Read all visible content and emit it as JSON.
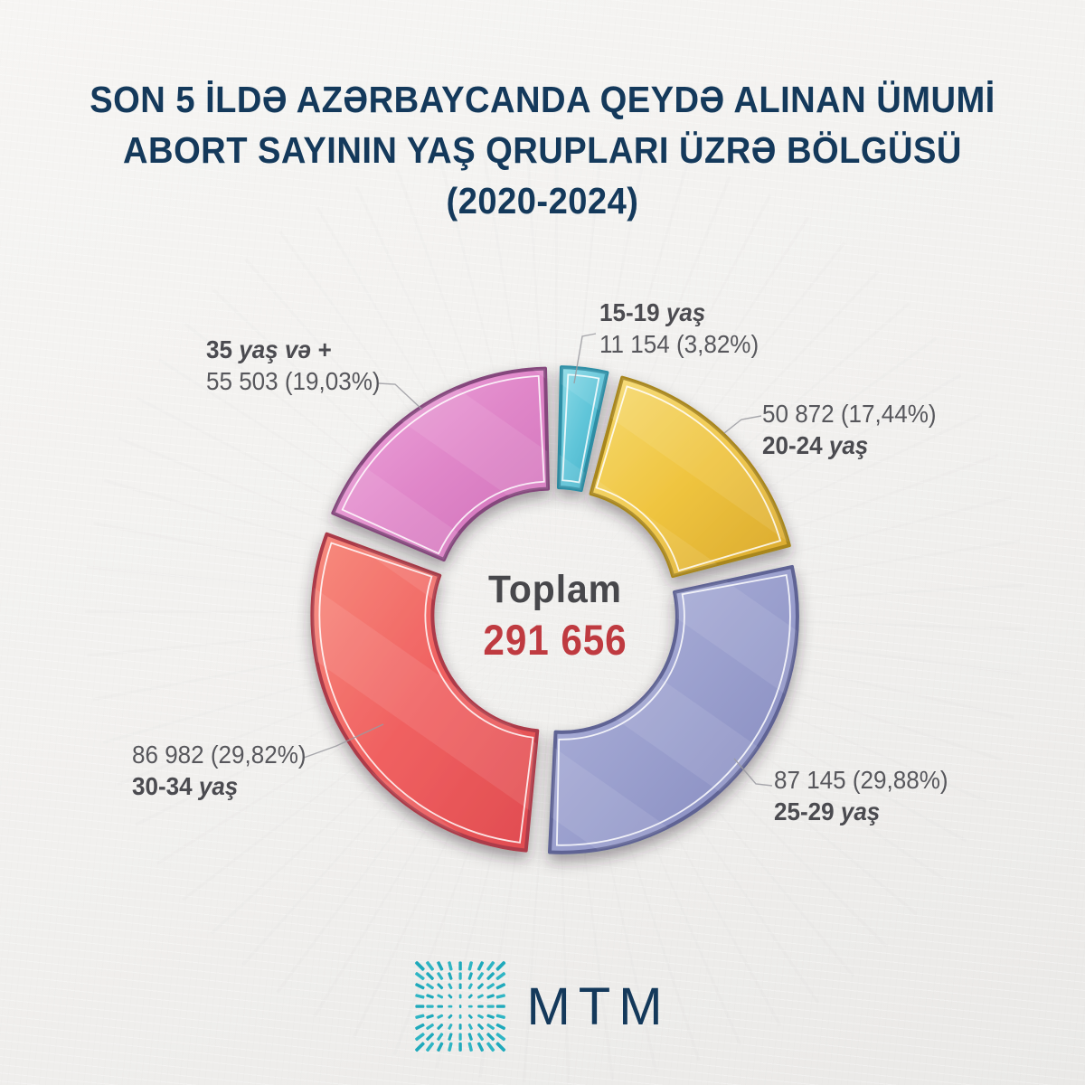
{
  "title": {
    "line1": "SON 5 İLDƏ AZƏRBAYCANDA QEYDƏ ALINAN ÜMUMİ",
    "line2": "ABORT SAYININ YAŞ QRUPLARI ÜZRƏ BÖLGÜSÜ",
    "line3": "(2020-2024)"
  },
  "colors": {
    "background": "#F1F0EE",
    "title_navy": "#14395B",
    "label_text": "#57575C",
    "center_label_gray": "#47474B",
    "center_value_red": "#BF3A40",
    "leader_line": "#9A9AA0",
    "logo_teal": "#1FA9BB",
    "brand_navy": "#14395B"
  },
  "chart_data": {
    "type": "pie",
    "subtype": "donut",
    "title": "SON 5 İLDƏ AZƏRBAYCANDA QEYDƏ ALINAN ÜMUMİ ABORT SAYININ YAŞ QRUPLARI ÜZRƏ BÖLGÜSÜ (2020-2024)",
    "center_label": "Toplam",
    "total": 291656,
    "center_value_display": "291 656",
    "legend_position": "callout-labels",
    "start_angle_deg": 0,
    "direction": "clockwise",
    "segments": [
      {
        "label": "15-19 yaş",
        "value": 11154,
        "pct": 3.82,
        "display": "11 154 (3,82%)",
        "fill": "#5EC4D8",
        "fill_light": "#8FDCE8",
        "fill_dark": "#3FA9C2",
        "border": "#2F8FA6"
      },
      {
        "label": "20-24 yaş",
        "value": 50872,
        "pct": 17.44,
        "display": "50 872 (17,44%)",
        "fill": "#EFC43F",
        "fill_light": "#F6DB72",
        "fill_dark": "#D9A92E",
        "border": "#A8861F"
      },
      {
        "label": "25-29 yaş",
        "value": 87145,
        "pct": 29.88,
        "display": "87 145 (29,88%)",
        "fill": "#9BA0CE",
        "fill_light": "#B4B8DE",
        "fill_dark": "#8287BC",
        "border": "#5F6394"
      },
      {
        "label": "30-34 yaş",
        "value": 86982,
        "pct": 29.82,
        "display": "86 982 (29,82%)",
        "fill": "#F06161",
        "fill_light": "#F78C7E",
        "fill_dark": "#E04B50",
        "border": "#AC3B49"
      },
      {
        "label": "35 yaş və +",
        "value": 55503,
        "pct": 19.03,
        "display": "55 503 (19,03%)",
        "fill": "#E087C9",
        "fill_light": "#EFABDE",
        "fill_dark": "#CE6FB8",
        "border": "#84477C"
      }
    ]
  },
  "callouts": {
    "teal": {
      "line1_main": "15-19 ",
      "line1_italic": "yaş",
      "line2_main": "11 154 (3,82%)",
      "line2_italic": ""
    },
    "yellow": {
      "line1_main": "50 872 (17,44%)",
      "line1_italic": "",
      "line2_main": "20-24 ",
      "line2_italic": "yaş"
    },
    "purple": {
      "line1_main": "87 145 (29,88%)",
      "line1_italic": "",
      "line2_main": "25-29 ",
      "line2_italic": "yaş"
    },
    "red": {
      "line1_main": "86 982 (29,82%)",
      "line1_italic": "",
      "line2_main": "30-34 ",
      "line2_italic": "yaş"
    },
    "pink": {
      "line1_main": "35 ",
      "line1_italic": "yaş və +",
      "line2_main": "55 503 (19,03%)",
      "line2_italic": ""
    }
  },
  "footer": {
    "brand": "MTM",
    "logo_icon": "radial-dash-grid-icon"
  }
}
